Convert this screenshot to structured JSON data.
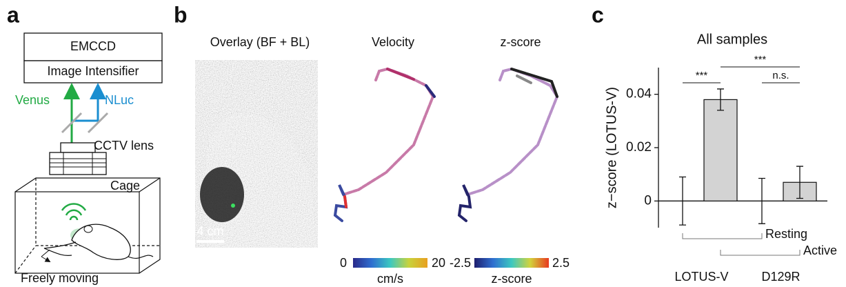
{
  "panel_a": {
    "label": "a",
    "camera": "EMCCD",
    "intensifier": "Image Intensifier",
    "channels": [
      "Venus",
      "NLuc"
    ],
    "lens": "CCTV lens",
    "cage": "Cage",
    "caption": "Freely moving"
  },
  "panel_b": {
    "label": "b",
    "titles": [
      "Overlay (BF + BL)",
      "Velocity",
      "z-score"
    ],
    "scale_bar": "4 cm",
    "colorbars": [
      {
        "min": 0,
        "max": 20,
        "unit": "cm/s"
      },
      {
        "min": -2.5,
        "max": 2.5,
        "unit": "z-score"
      }
    ]
  },
  "panel_c_label": "c",
  "chart_data": {
    "type": "bar",
    "title": "All samples",
    "y_label": "z−score (LOTUS-V)",
    "categories": [
      "LOTUS-V",
      "D129R"
    ],
    "series": [
      {
        "name": "Resting",
        "color": "#ffffff",
        "values": [
          0,
          0
        ],
        "errors": [
          0.009,
          0.0085
        ]
      },
      {
        "name": "Active",
        "color": "#d3d3d3",
        "values": [
          0.038,
          0.007
        ],
        "errors": [
          0.004,
          0.006
        ]
      }
    ],
    "significance": [
      "***",
      "***",
      "n.s."
    ],
    "ylim": [
      -0.01,
      0.05
    ],
    "yticks": [
      0,
      0.02,
      0.04
    ]
  }
}
